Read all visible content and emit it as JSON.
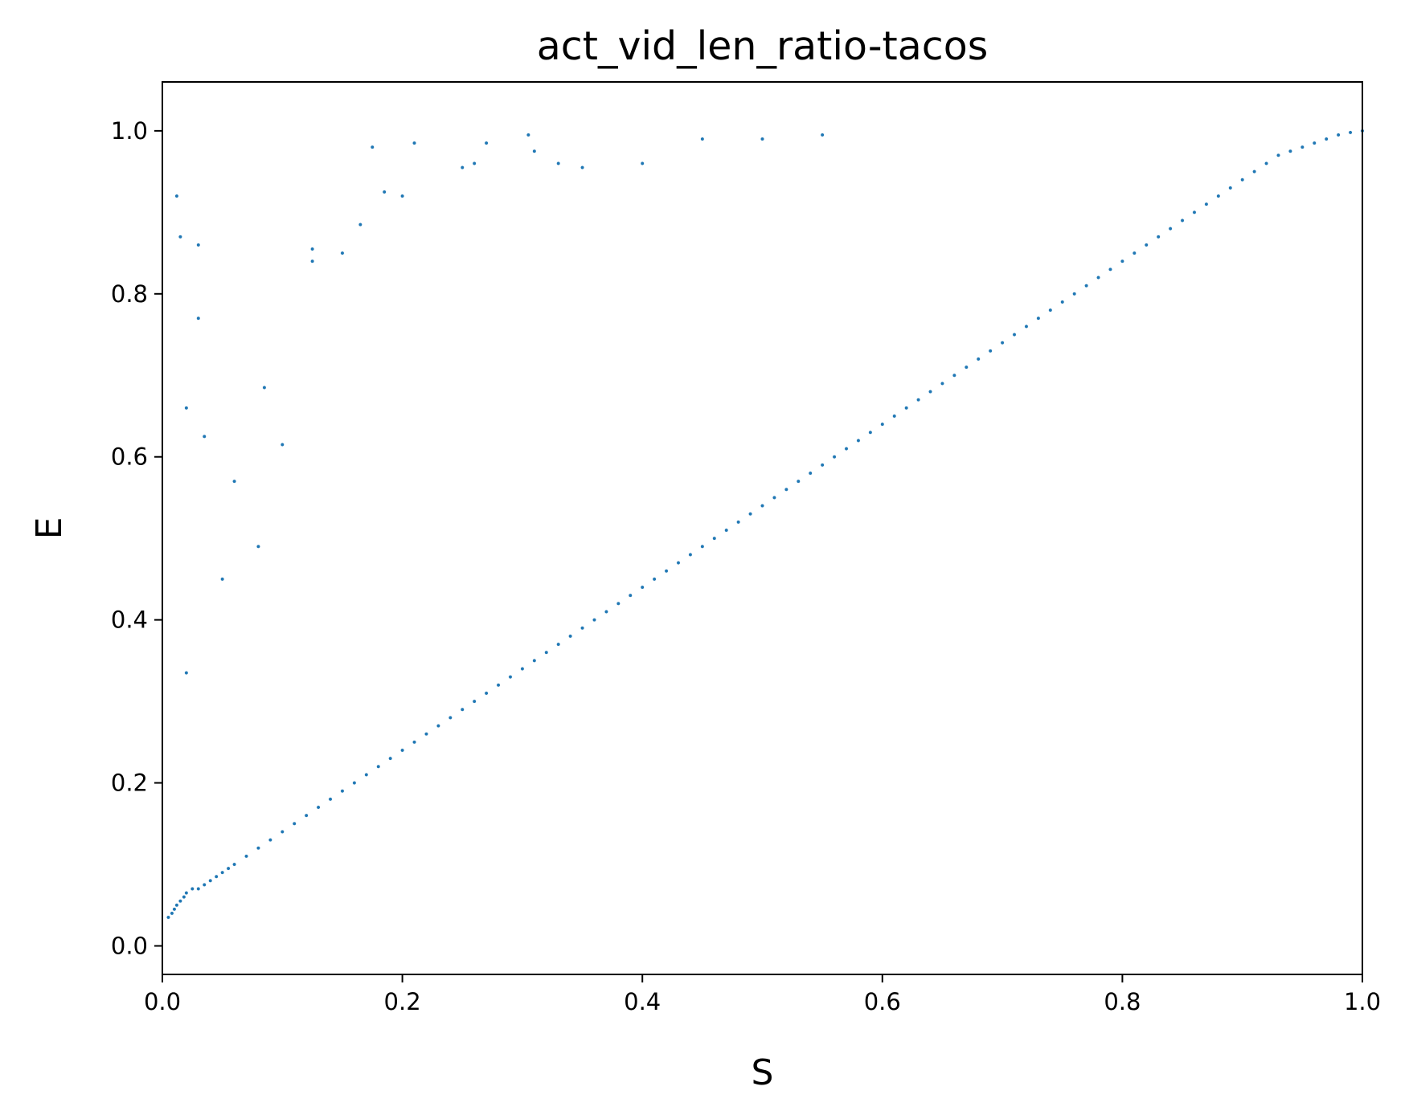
{
  "chart_data": {
    "type": "scatter",
    "title": "act_vid_len_ratio-tacos",
    "xlabel": "S",
    "ylabel": "E",
    "xlim": [
      0.0,
      1.0
    ],
    "ylim": [
      -0.035,
      1.06
    ],
    "xticks": [
      0.0,
      0.2,
      0.4,
      0.6,
      0.8,
      1.0
    ],
    "yticks": [
      0.0,
      0.2,
      0.4,
      0.6,
      0.8,
      1.0
    ],
    "xtick_labels": [
      "0.0",
      "0.2",
      "0.4",
      "0.6",
      "0.8",
      "1.0"
    ],
    "ytick_labels": [
      "0.0",
      "0.2",
      "0.4",
      "0.6",
      "0.8",
      "1.0"
    ],
    "grid": false,
    "legend": "none",
    "point_color": "#1f77b4",
    "point_edge_color": "#ffffff",
    "series": [
      {
        "x": [
          0.005,
          0.008,
          0.01,
          0.012,
          0.015,
          0.018,
          0.02,
          0.025,
          0.03,
          0.035,
          0.04,
          0.045,
          0.05,
          0.055,
          0.06,
          0.07,
          0.08,
          0.09,
          0.1,
          0.11,
          0.12,
          0.13,
          0.14,
          0.15,
          0.16,
          0.17,
          0.18,
          0.19,
          0.2,
          0.21,
          0.22,
          0.23,
          0.24,
          0.25,
          0.26,
          0.27,
          0.28,
          0.29,
          0.3,
          0.31,
          0.32,
          0.33,
          0.34,
          0.35,
          0.36,
          0.37,
          0.38,
          0.39,
          0.4,
          0.41,
          0.42,
          0.43,
          0.44,
          0.45,
          0.46,
          0.47,
          0.48,
          0.49,
          0.5,
          0.51,
          0.52,
          0.53,
          0.54,
          0.55,
          0.56,
          0.57,
          0.58,
          0.59,
          0.6,
          0.61,
          0.62,
          0.63,
          0.64,
          0.65,
          0.66,
          0.67,
          0.68,
          0.69,
          0.7,
          0.71,
          0.72,
          0.73,
          0.74,
          0.75,
          0.76,
          0.77,
          0.78,
          0.79,
          0.8,
          0.81,
          0.82,
          0.83,
          0.84,
          0.85,
          0.86,
          0.87,
          0.88,
          0.89,
          0.9,
          0.91,
          0.92,
          0.93,
          0.94,
          0.95,
          0.96,
          0.97,
          0.98,
          0.99,
          1.0,
          0.012,
          0.015,
          0.02,
          0.02,
          0.03,
          0.03,
          0.035,
          0.05,
          0.06,
          0.08,
          0.085,
          0.1,
          0.125,
          0.125,
          0.15,
          0.165,
          0.175,
          0.185,
          0.2,
          0.21,
          0.25,
          0.26,
          0.27,
          0.305,
          0.31,
          0.33,
          0.35,
          0.4,
          0.45,
          0.5,
          0.55
        ],
        "y": [
          0.035,
          0.04,
          0.045,
          0.05,
          0.055,
          0.06,
          0.065,
          0.07,
          0.07,
          0.075,
          0.08,
          0.085,
          0.09,
          0.095,
          0.1,
          0.11,
          0.12,
          0.13,
          0.14,
          0.15,
          0.16,
          0.17,
          0.18,
          0.19,
          0.2,
          0.21,
          0.22,
          0.23,
          0.24,
          0.25,
          0.26,
          0.27,
          0.28,
          0.29,
          0.3,
          0.31,
          0.32,
          0.33,
          0.34,
          0.35,
          0.36,
          0.37,
          0.38,
          0.39,
          0.4,
          0.41,
          0.42,
          0.43,
          0.44,
          0.45,
          0.46,
          0.47,
          0.48,
          0.49,
          0.5,
          0.51,
          0.52,
          0.53,
          0.54,
          0.55,
          0.56,
          0.57,
          0.58,
          0.59,
          0.6,
          0.61,
          0.62,
          0.63,
          0.64,
          0.65,
          0.66,
          0.67,
          0.68,
          0.69,
          0.7,
          0.71,
          0.72,
          0.73,
          0.74,
          0.75,
          0.76,
          0.77,
          0.78,
          0.79,
          0.8,
          0.81,
          0.82,
          0.83,
          0.84,
          0.85,
          0.86,
          0.87,
          0.88,
          0.89,
          0.9,
          0.91,
          0.92,
          0.93,
          0.94,
          0.95,
          0.96,
          0.97,
          0.975,
          0.98,
          0.985,
          0.99,
          0.995,
          0.998,
          1.0,
          0.92,
          0.87,
          0.66,
          0.335,
          0.86,
          0.77,
          0.625,
          0.45,
          0.57,
          0.49,
          0.685,
          0.615,
          0.855,
          0.84,
          0.85,
          0.885,
          0.98,
          0.925,
          0.92,
          0.985,
          0.955,
          0.96,
          0.985,
          0.995,
          0.975,
          0.96,
          0.955,
          0.96,
          0.99,
          0.99,
          0.995
        ]
      }
    ]
  }
}
